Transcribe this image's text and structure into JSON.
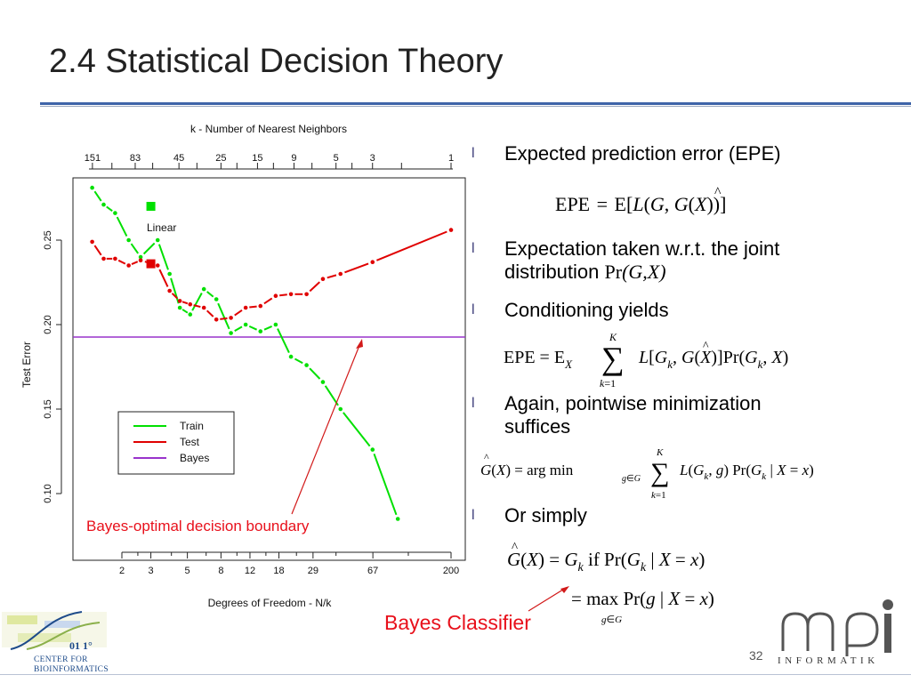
{
  "slide": {
    "title": "2.4 Statistical Decision Theory",
    "page_number": "32"
  },
  "colors": {
    "title_rule": "#3e64a8",
    "train": "#00e000",
    "test": "#e00000",
    "bayes": "#9933cc",
    "annotation": "#e8101b"
  },
  "chart_data": {
    "type": "line",
    "top_axis_label": "k -  Number of Nearest Neighbors",
    "top_ticks": [
      "151",
      "83",
      "45",
      "25",
      "15",
      "9",
      "5",
      "3",
      "1"
    ],
    "xlabel": "Degrees of Freedom - N/k",
    "x_ticks": [
      "2",
      "3",
      "5",
      "8",
      "12",
      "18",
      "29",
      "67",
      "200"
    ],
    "x_scale": "log",
    "ylabel": "Test Error",
    "y_ticks": [
      "0.10",
      "0.15",
      "0.20",
      "0.25"
    ],
    "ylim": [
      0.065,
      0.288
    ],
    "legend": [
      "Train",
      "Test",
      "Bayes"
    ],
    "legend_position": "bottom-left",
    "linear_label": "Linear",
    "annotation": "Bayes-optimal decision boundary",
    "series": [
      {
        "name": "Train",
        "color": "#00e000",
        "x": [
          1.32,
          1.55,
          1.82,
          2.2,
          2.6,
          3.3,
          3.9,
          4.5,
          5.2,
          6.3,
          7.5,
          9.2,
          11.3,
          13.9,
          17.2,
          21.3,
          26.5,
          33.3,
          42.6,
          66.7,
          95
        ],
        "y": [
          0.281,
          0.271,
          0.266,
          0.25,
          0.24,
          0.25,
          0.23,
          0.21,
          0.206,
          0.221,
          0.215,
          0.195,
          0.2,
          0.196,
          0.2,
          0.181,
          0.176,
          0.166,
          0.15,
          0.126,
          0.085
        ]
      },
      {
        "name": "Test",
        "color": "#e00000",
        "x": [
          1.32,
          1.55,
          1.82,
          2.2,
          2.6,
          3.3,
          3.9,
          4.5,
          5.2,
          6.3,
          7.5,
          9.2,
          11.3,
          13.9,
          17.2,
          21.3,
          26.5,
          33.3,
          42.6,
          66.7,
          200
        ],
        "y": [
          0.249,
          0.239,
          0.239,
          0.235,
          0.238,
          0.235,
          0.22,
          0.214,
          0.212,
          0.21,
          0.203,
          0.204,
          0.21,
          0.211,
          0.217,
          0.218,
          0.218,
          0.227,
          0.23,
          0.237,
          0.256
        ]
      },
      {
        "name": "Bayes",
        "color": "#9933cc",
        "y": 0.1926
      }
    ],
    "linear_points": [
      {
        "name": "Train",
        "x": 3,
        "y": 0.27
      },
      {
        "name": "Test",
        "x": 3,
        "y": 0.236
      }
    ]
  },
  "bullets": [
    {
      "mark": "l",
      "text": "Expected prediction error (EPE)"
    },
    {
      "mark": "l",
      "text": "Expectation taken w.r.t. the joint",
      "text2_prefix": "distribution ",
      "text2_rm": "Pr",
      "text2_it": "(G,X)"
    },
    {
      "mark": "l",
      "text": "Conditioning yields"
    },
    {
      "mark": "l",
      "text": "Again, pointwise minimization",
      "text2": "suffices"
    },
    {
      "mark": "l",
      "text": "Or simply"
    }
  ],
  "bayes_classifier": "Bayes Classifier",
  "logos": {
    "center_line1": "CENTER FOR",
    "center_line2": "BIOINFORMATICS",
    "mpi_word": "INFORMATIK"
  }
}
